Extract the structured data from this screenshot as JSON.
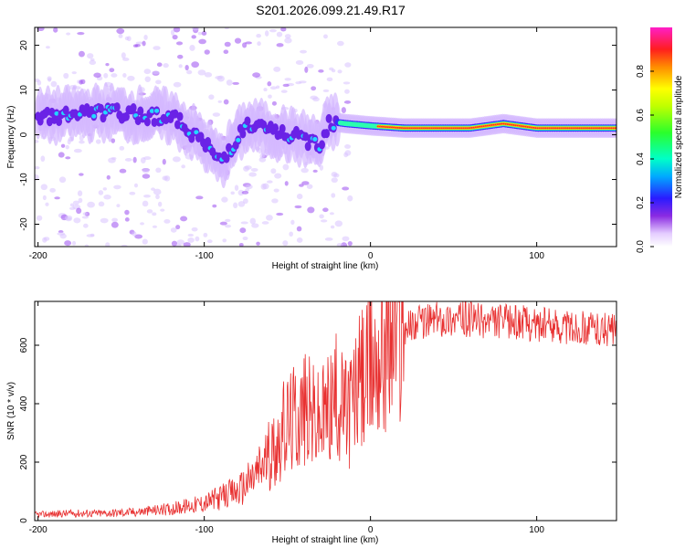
{
  "title": "S201.2026.099.21.49.R17",
  "chart_data": [
    {
      "type": "heatmap",
      "name": "spectrogram",
      "xlabel": "Height of straight line (km)",
      "ylabel": "Frequency (Hz)",
      "xlim": [
        -202,
        148
      ],
      "ylim": [
        -25,
        24
      ],
      "xticks": [
        -200,
        -100,
        0,
        100
      ],
      "yticks": [
        -20,
        -10,
        0,
        10,
        20
      ],
      "xtick_labels": [
        "-200",
        "-100",
        "0",
        "100"
      ],
      "ytick_labels": [
        "-20",
        "-10",
        "0",
        "10",
        "20"
      ],
      "colorbar": {
        "label": "Normalized spectral amplitude",
        "range": [
          0,
          1
        ],
        "ticks": [
          0.0,
          0.2,
          0.4,
          0.6,
          0.8
        ],
        "tick_labels": [
          "0.0",
          "0.2",
          "0.4",
          "0.6",
          "0.8"
        ]
      },
      "ridge": [
        {
          "x": -200,
          "f": 4.0
        },
        {
          "x": -180,
          "f": 4.5
        },
        {
          "x": -160,
          "f": 5.0
        },
        {
          "x": -140,
          "f": 4.5
        },
        {
          "x": -120,
          "f": 4.0
        },
        {
          "x": -110,
          "f": 1.5
        },
        {
          "x": -100,
          "f": -2.0
        },
        {
          "x": -90,
          "f": -6.0
        },
        {
          "x": -75,
          "f": 2.0
        },
        {
          "x": -60,
          "f": 1.0
        },
        {
          "x": -40,
          "f": -1.0
        },
        {
          "x": -30,
          "f": -2.0
        },
        {
          "x": -25,
          "f": 3.0
        },
        {
          "x": -15,
          "f": 2.5
        },
        {
          "x": 0,
          "f": 2.0
        },
        {
          "x": 20,
          "f": 1.5
        },
        {
          "x": 60,
          "f": 1.5
        },
        {
          "x": 80,
          "f": 2.5
        },
        {
          "x": 100,
          "f": 1.5
        },
        {
          "x": 148,
          "f": 1.5
        }
      ]
    },
    {
      "type": "line",
      "name": "snr",
      "xlabel": "Height of straight line (km)",
      "ylabel": "SNR (10 * v/v)",
      "xlim": [
        -202,
        148
      ],
      "ylim": [
        0,
        750
      ],
      "xticks": [
        -200,
        -100,
        0,
        100
      ],
      "yticks": [
        0,
        200,
        400,
        600
      ],
      "xtick_labels": [
        "-200",
        "-100",
        "0",
        "100"
      ],
      "ytick_labels": [
        "0",
        "200",
        "400",
        "600"
      ],
      "series_color": "#e83030",
      "series": [
        {
          "name": "SNR envelope",
          "x": [
            -202,
            -180,
            -160,
            -140,
            -120,
            -100,
            -90,
            -80,
            -70,
            -60,
            -50,
            -40,
            -30,
            -25,
            -20,
            -15,
            -10,
            -5,
            0,
            5,
            10,
            20,
            30,
            40,
            50,
            60,
            70,
            80,
            90,
            100,
            110,
            120,
            130,
            148
          ],
          "y": [
            20,
            25,
            25,
            30,
            40,
            60,
            80,
            100,
            150,
            230,
            330,
            380,
            330,
            390,
            420,
            370,
            420,
            480,
            520,
            580,
            630,
            660,
            680,
            690,
            690,
            690,
            680,
            680,
            680,
            670,
            670,
            660,
            660,
            650
          ]
        }
      ]
    }
  ],
  "colors": {
    "snr_line": "#e83030",
    "axis": "#000000"
  }
}
